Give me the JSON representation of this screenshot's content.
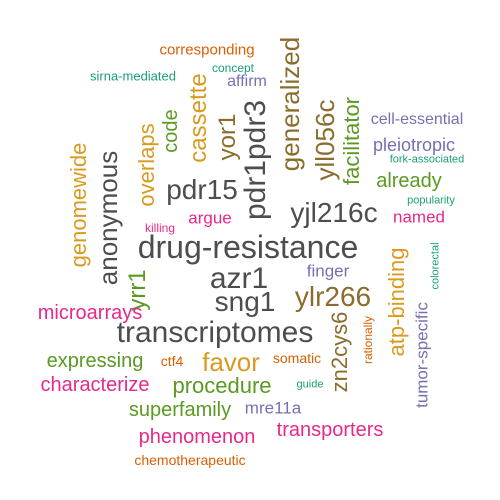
{
  "colors": {
    "dark_gray": "#4d4d4d",
    "brown": "#8a6d2c",
    "gold": "#d99a1f",
    "green": "#5a9a22",
    "teal": "#1b9e77",
    "orange": "#d95f02",
    "purple": "#7570b3",
    "magenta": "#e7298a"
  },
  "words": [
    {
      "text": "drug-resistance",
      "color": "dark_gray"
    },
    {
      "text": "transcriptomes",
      "color": "dark_gray"
    },
    {
      "text": "pdr1pdr3",
      "color": "dark_gray"
    },
    {
      "text": "yjl216c",
      "color": "dark_gray"
    },
    {
      "text": "pdr15",
      "color": "dark_gray"
    },
    {
      "text": "azr1",
      "color": "dark_gray"
    },
    {
      "text": "sng1",
      "color": "dark_gray"
    },
    {
      "text": "anonymous",
      "color": "dark_gray"
    },
    {
      "text": "generalized",
      "color": "brown"
    },
    {
      "text": "yll056c",
      "color": "brown"
    },
    {
      "text": "ylr266",
      "color": "brown"
    },
    {
      "text": "yor1",
      "color": "brown"
    },
    {
      "text": "zn2cys6",
      "color": "brown"
    },
    {
      "text": "genomewide",
      "color": "gold"
    },
    {
      "text": "overlaps",
      "color": "gold"
    },
    {
      "text": "cassette",
      "color": "gold"
    },
    {
      "text": "favor",
      "color": "gold"
    },
    {
      "text": "atp-binding",
      "color": "gold"
    },
    {
      "text": "code",
      "color": "green"
    },
    {
      "text": "facilitator",
      "color": "green"
    },
    {
      "text": "already",
      "color": "green"
    },
    {
      "text": "yrr1",
      "color": "green"
    },
    {
      "text": "expressing",
      "color": "green"
    },
    {
      "text": "procedure",
      "color": "green"
    },
    {
      "text": "superfamily",
      "color": "green"
    },
    {
      "text": "microarrays",
      "color": "magenta"
    },
    {
      "text": "characterize",
      "color": "magenta"
    },
    {
      "text": "phenomenon",
      "color": "magenta"
    },
    {
      "text": "transporters",
      "color": "magenta"
    },
    {
      "text": "named",
      "color": "magenta"
    },
    {
      "text": "argue",
      "color": "magenta"
    },
    {
      "text": "killing",
      "color": "magenta"
    },
    {
      "text": "pleiotropic",
      "color": "purple"
    },
    {
      "text": "cell-essential",
      "color": "purple"
    },
    {
      "text": "finger",
      "color": "purple"
    },
    {
      "text": "tumor-specific",
      "color": "purple"
    },
    {
      "text": "mre11a",
      "color": "purple"
    },
    {
      "text": "affirm",
      "color": "purple"
    },
    {
      "text": "corresponding",
      "color": "orange"
    },
    {
      "text": "chemotherapeutic",
      "color": "orange"
    },
    {
      "text": "ctf4",
      "color": "orange"
    },
    {
      "text": "somatic",
      "color": "orange"
    },
    {
      "text": "rationally",
      "color": "orange"
    },
    {
      "text": "concept",
      "color": "teal"
    },
    {
      "text": "sirna-mediated",
      "color": "teal"
    },
    {
      "text": "fork-associated",
      "color": "teal"
    },
    {
      "text": "popularity",
      "color": "teal"
    },
    {
      "text": "colorectal",
      "color": "teal"
    },
    {
      "text": "guide",
      "color": "teal"
    }
  ]
}
